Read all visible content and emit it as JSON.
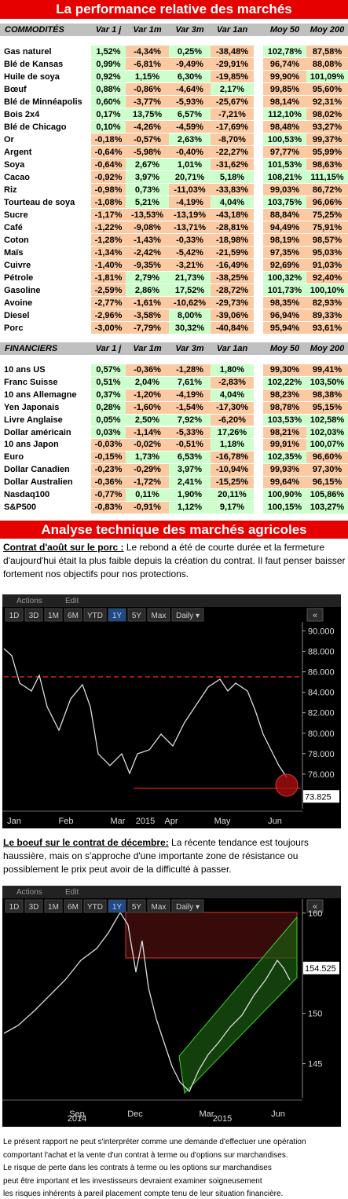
{
  "title": "La performance relative des marchés",
  "colors": {
    "positive": "#ccffcc",
    "negative": "#fccaa2",
    "header": "#c0c0c0",
    "banner": "#e60000"
  },
  "commodities": {
    "header": [
      "COMMODITÉS",
      "Var 1 j",
      "Var 1m",
      "Var 3m",
      "Var 1an",
      "Moy 50",
      "Moy 200"
    ],
    "rows": [
      [
        "Gas naturel",
        "1,52%",
        "-4,34%",
        "0,25%",
        "-38,48%",
        "102,78%",
        "87,58%"
      ],
      [
        "Blé de Kansas",
        "0,99%",
        "-6,81%",
        "-9,49%",
        "-29,91%",
        "96,74%",
        "88,08%"
      ],
      [
        "Huile de soya",
        "0,92%",
        "1,15%",
        "6,30%",
        "-19,85%",
        "99,90%",
        "101,09%"
      ],
      [
        "Bœuf",
        "0,88%",
        "-0,86%",
        "-4,64%",
        "2,17%",
        "99,85%",
        "95,60%"
      ],
      [
        "Blé de Minnéapolis",
        "0,60%",
        "-3,77%",
        "-5,93%",
        "-25,67%",
        "98,14%",
        "92,31%"
      ],
      [
        "Bois 2x4",
        "0,17%",
        "13,75%",
        "6,57%",
        "-7,21%",
        "112,10%",
        "98,02%"
      ],
      [
        "Blé de Chicago",
        "0,10%",
        "-4,26%",
        "-4,59%",
        "-17,69%",
        "98,48%",
        "93,27%"
      ],
      [
        "Or",
        "-0,18%",
        "-0,57%",
        "2,63%",
        "-8,70%",
        "100,53%",
        "99,37%"
      ],
      [
        "Argent",
        "-0,64%",
        "-5,98%",
        "-0,40%",
        "-22,27%",
        "97,77%",
        "95,99%"
      ],
      [
        "Soya",
        "-0,64%",
        "2,67%",
        "1,01%",
        "-31,62%",
        "101,53%",
        "98,63%"
      ],
      [
        "Cacao",
        "-0,92%",
        "3,97%",
        "20,71%",
        "5,18%",
        "108,21%",
        "111,15%"
      ],
      [
        "Riz",
        "-0,98%",
        "0,73%",
        "-11,03%",
        "-33,83%",
        "99,03%",
        "86,72%"
      ],
      [
        "Tourteau de soya",
        "-1,08%",
        "5,21%",
        "-4,19%",
        "4,04%",
        "103,75%",
        "96,06%"
      ],
      [
        "Sucre",
        "-1,17%",
        "-13,53%",
        "-13,19%",
        "-43,18%",
        "88,84%",
        "75,25%"
      ],
      [
        "Café",
        "-1,22%",
        "-9,08%",
        "-13,71%",
        "-28,81%",
        "94,49%",
        "75,91%"
      ],
      [
        "Coton",
        "-1,28%",
        "-1,43%",
        "-0,33%",
        "-18,98%",
        "98,19%",
        "98,57%"
      ],
      [
        "Maïs",
        "-1,34%",
        "-2,42%",
        "-5,42%",
        "-21,59%",
        "97,35%",
        "95,03%"
      ],
      [
        "Cuivre",
        "-1,40%",
        "-9,35%",
        "-3,21%",
        "-16,49%",
        "92,69%",
        "91,03%"
      ],
      [
        "Pétrole",
        "-1,81%",
        "2,79%",
        "21,73%",
        "-38,25%",
        "100,32%",
        "92,40%"
      ],
      [
        "Gasoline",
        "-2,59%",
        "2,86%",
        "17,52%",
        "-28,72%",
        "101,73%",
        "100,10%"
      ],
      [
        "Avoine",
        "-2,77%",
        "-1,61%",
        "-10,62%",
        "-29,73%",
        "98,35%",
        "82,93%"
      ],
      [
        "Diesel",
        "-2,96%",
        "-3,58%",
        "8,00%",
        "-39,06%",
        "96,94%",
        "89,33%"
      ],
      [
        "Porc",
        "-3,00%",
        "-7,79%",
        "30,32%",
        "-40,84%",
        "95,94%",
        "93,61%"
      ]
    ]
  },
  "financials": {
    "header": [
      "FINANCIERS",
      "Var 1 j",
      "Var 1m",
      "Var 3m",
      "Var 1an",
      "Moy 50",
      "Moy 200"
    ],
    "rows": [
      [
        "10 ans US",
        "0,57%",
        "-0,36%",
        "-1,28%",
        "1,80%",
        "99,30%",
        "99,41%"
      ],
      [
        "Franc Suisse",
        "0,51%",
        "2,04%",
        "7,61%",
        "-2,83%",
        "102,22%",
        "103,50%"
      ],
      [
        "10 ans Allemagne",
        "0,37%",
        "-1,20%",
        "-4,19%",
        "4,04%",
        "98,23%",
        "98,38%"
      ],
      [
        "Yen Japonais",
        "0,28%",
        "-1,60%",
        "-1,54%",
        "-17,30%",
        "98,78%",
        "95,15%"
      ],
      [
        "Livre Anglaise",
        "0,05%",
        "2,50%",
        "7,92%",
        "-6,20%",
        "103,53%",
        "102,58%"
      ],
      [
        "Dollar américain",
        "0,03%",
        "-1,14%",
        "-5,33%",
        "17,26%",
        "98,21%",
        "102,03%"
      ],
      [
        "10 ans Japon",
        "-0,03%",
        "-0,02%",
        "-0,51%",
        "1,18%",
        "99,91%",
        "100,07%"
      ],
      [
        "Euro",
        "-0,15%",
        "1,73%",
        "6,53%",
        "-16,78%",
        "102,35%",
        "96,60%"
      ],
      [
        "Dollar Canadien",
        "-0,23%",
        "-0,29%",
        "3,97%",
        "-10,94%",
        "99,93%",
        "97,30%"
      ],
      [
        "Dollar Australien",
        "-0,36%",
        "-1,72%",
        "2,41%",
        "-15,25%",
        "99,64%",
        "96,15%"
      ],
      [
        "Nasdaq100",
        "-0,77%",
        "0,11%",
        "1,90%",
        "20,11%",
        "100,90%",
        "105,86%"
      ],
      [
        "S&P500",
        "-0,83%",
        "-0,91%",
        "1,12%",
        "9,17%",
        "100,15%",
        "103,27%"
      ]
    ]
  },
  "section_title": "Analyse technique des marchés agricoles",
  "paragraphs": [
    {
      "heading": "Contrat d'août sur le porc :",
      "text": " Le rebond a été de courte durée et la fermeture d'aujourd'hui était la plus faible depuis la création du contrat. Il faut penser baisser fortement nos objectifs pour nos protections."
    },
    {
      "heading": "Le boeuf sur le contrat de décembre:",
      "text": "  La récente tendance est toujours haussière, mais on s'approche d'une importante zone de résistance ou possiblement le prix peut avoir de la difficulté à passer."
    }
  ],
  "charts": [
    {
      "menu": [
        "Actions",
        "Edit"
      ],
      "buttons": [
        "1D",
        "3D",
        "1M",
        "6M",
        "YTD",
        "1Y",
        "5Y",
        "Max",
        "Daily ▾"
      ],
      "active_button": 5,
      "nav": "«",
      "ylim": [
        73,
        90.5
      ],
      "yticks": [
        {
          "value": 90,
          "label": "90.000"
        },
        {
          "value": 88,
          "label": "88.000"
        },
        {
          "value": 86,
          "label": "86.000"
        },
        {
          "value": 84,
          "label": "84.000"
        },
        {
          "value": 82,
          "label": "82.000"
        },
        {
          "value": 80,
          "label": "80.000"
        },
        {
          "value": 78,
          "label": "78.000"
        },
        {
          "value": 76,
          "label": "76.000"
        }
      ],
      "xlabels": [
        "Jan",
        "Feb",
        "Mar",
        "Apr",
        "May",
        "Jun"
      ],
      "years": [
        "2015"
      ],
      "last_price": 73.825
    },
    {
      "menu": [
        "Actions",
        "Edit"
      ],
      "buttons": [
        "1D",
        "3D",
        "1M",
        "6M",
        "YTD",
        "1Y",
        "5Y",
        "Max",
        "Daily ▾"
      ],
      "active_button": 5,
      "nav": "«",
      "ylim": [
        142,
        161
      ],
      "yticks": [
        160,
        150,
        145
      ],
      "xlabels": [
        "Sep",
        "Dec",
        "Mar",
        "Jun"
      ],
      "years": [
        "2014",
        "2015"
      ],
      "last_price": 154.525
    }
  ],
  "footer": [
    "Le présent rapport ne peut s'interpréter comme une demande d'effectuer une opération",
    "comportant l'achat et la vente d'un contrat à terme ou d'options sur marchandises.",
    "Le risque de perte dans les contrats à terme ou les options sur marchandises",
    "peut être important et les investisseurs devraient examiner soigneusement",
    "les risques inhérents à pareil placement compte tenu de leur situation financière."
  ]
}
